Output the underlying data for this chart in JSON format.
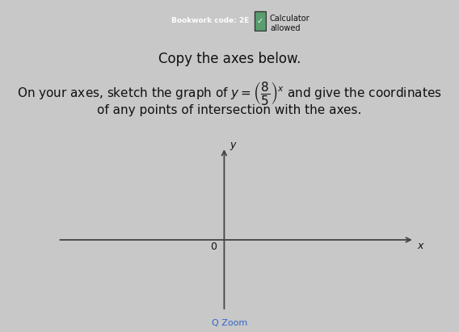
{
  "background_color": "#c8c8c8",
  "panel_color": "#e8e8e8",
  "axes_color": "#444444",
  "text_color": "#111111",
  "title_text": "Copy the axes below.",
  "body_line1": "On your axes, sketch the graph of $y = \\left(\\dfrac{8}{5}\\right)^x$ and give the coordinates",
  "body_line2": "of any points of intersection with the axes.",
  "bookwork_label": "Bookwork code: 2E",
  "calculator_label": "Calculator\nallowed",
  "origin_label": "0",
  "x_label": "x",
  "y_label": "y",
  "title_fontsize": 12,
  "body_fontsize": 11,
  "axis_linewidth": 1.3,
  "zoom_text": "Q Zoom",
  "zoom_fontsize": 8,
  "zoom_color": "#3366cc",
  "btn_color": "#2c3e6b",
  "btn_text_color": "#ffffff",
  "btn_fontsize": 6.5,
  "calc_fontsize": 7
}
